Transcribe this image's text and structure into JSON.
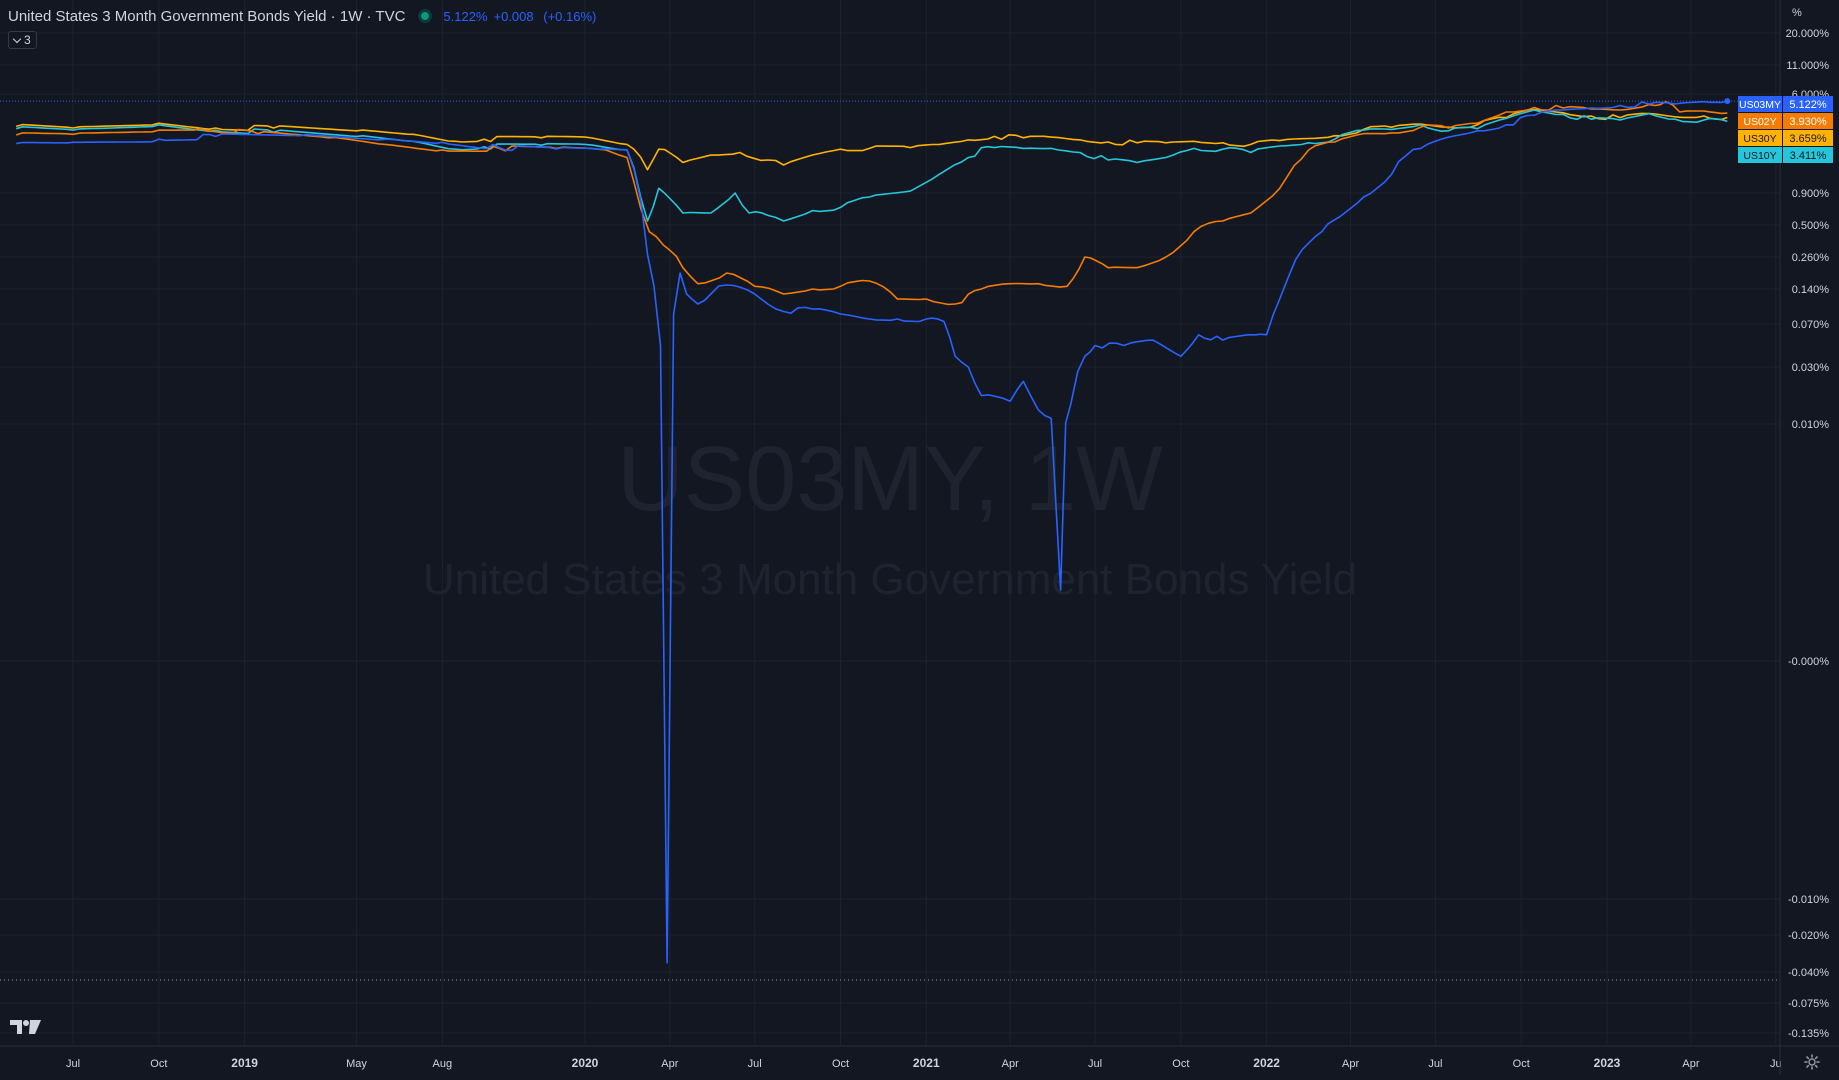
{
  "header": {
    "title": "United States 3 Month Government Bonds Yield · 1W · TVC",
    "last": "5.122%",
    "change": "+0.008",
    "change_pct": "(+0.16%)",
    "status_color": "#089981",
    "legend_toggle": "3"
  },
  "watermark": {
    "symbol": "US03MY, 1W",
    "description": "United States 3 Month Government Bonds Yield"
  },
  "icons": {
    "logo": "tradingview-logo-icon",
    "settings": "gear-icon",
    "toggle": "chevron-down-icon"
  },
  "colors": {
    "background": "#131722",
    "grid": "#1e222d",
    "axis_text": "#d1d4dc",
    "US03MY": "#2962ff",
    "US02Y": "#f57c00",
    "US30Y": "#ffb300",
    "US10Y": "#26c6da"
  },
  "chart_data": {
    "type": "line",
    "scale": "percent (log-like)",
    "axis_unit": "%",
    "y_ticks": [
      "20.000%",
      "11.000%",
      "6.000%",
      "0.900%",
      "0.500%",
      "0.260%",
      "0.140%",
      "0.070%",
      "0.030%",
      "0.010%",
      "-0.000%",
      "-0.010%",
      "-0.020%",
      "-0.040%",
      "-0.075%",
      "-0.135%"
    ],
    "y_tick_values": [
      20,
      11,
      6,
      0.9,
      0.5,
      0.26,
      0.14,
      0.07,
      0.03,
      0.01,
      0,
      -0.01,
      -0.02,
      -0.04,
      -0.075,
      -0.135
    ],
    "x_ticks": [
      "Jul",
      "Oct",
      "2019",
      "May",
      "Aug",
      "2020",
      "Apr",
      "Jul",
      "Oct",
      "2021",
      "Apr",
      "Jul",
      "Oct",
      "2022",
      "Apr",
      "Jul",
      "Oct",
      "2023",
      "Apr",
      "Ju"
    ],
    "x_tick_dates": [
      "2018-07-01",
      "2018-10-01",
      "2019-01-01",
      "2019-05-01",
      "2019-08-01",
      "2020-01-01",
      "2020-04-01",
      "2020-07-01",
      "2020-10-01",
      "2021-01-01",
      "2021-04-01",
      "2021-07-01",
      "2021-10-01",
      "2022-01-01",
      "2022-04-01",
      "2022-07-01",
      "2022-10-01",
      "2023-01-01",
      "2023-04-01",
      "2023-07-01"
    ],
    "x_range": [
      "2018-05-01",
      "2023-08-01"
    ],
    "grid": true,
    "legend": "right-axis labels",
    "series": [
      {
        "name": "US03MY",
        "last_label": "5.122%",
        "points": [
          [
            "2018-05-01",
            1.9
          ],
          [
            "2018-07-01",
            1.98
          ],
          [
            "2018-10-01",
            2.2
          ],
          [
            "2018-12-01",
            2.4
          ],
          [
            "2019-03-01",
            2.45
          ],
          [
            "2019-06-01",
            2.2
          ],
          [
            "2019-08-01",
            1.98
          ],
          [
            "2019-10-01",
            1.65
          ],
          [
            "2019-12-01",
            1.56
          ],
          [
            "2020-01-15",
            1.55
          ],
          [
            "2020-02-15",
            1.52
          ],
          [
            "2020-03-01",
            0.8
          ],
          [
            "2020-03-08",
            0.28
          ],
          [
            "2020-03-15",
            0.15
          ],
          [
            "2020-03-22",
            0.05
          ],
          [
            "2020-03-29",
            -0.035
          ],
          [
            "2020-04-05",
            0.09
          ],
          [
            "2020-04-12",
            0.2
          ],
          [
            "2020-04-19",
            0.13
          ],
          [
            "2020-05-01",
            0.11
          ],
          [
            "2020-05-15",
            0.13
          ],
          [
            "2020-06-01",
            0.155
          ],
          [
            "2020-07-01",
            0.13
          ],
          [
            "2020-07-15",
            0.11
          ],
          [
            "2020-08-01",
            0.095
          ],
          [
            "2020-09-01",
            0.1
          ],
          [
            "2020-10-01",
            0.09
          ],
          [
            "2020-11-01",
            0.08
          ],
          [
            "2020-12-01",
            0.08
          ],
          [
            "2021-01-01",
            0.08
          ],
          [
            "2021-01-20",
            0.075
          ],
          [
            "2021-02-01",
            0.04
          ],
          [
            "2021-02-15",
            0.03
          ],
          [
            "2021-03-01",
            0.02
          ],
          [
            "2021-04-01",
            0.018
          ],
          [
            "2021-04-15",
            0.025
          ],
          [
            "2021-05-01",
            0.015
          ],
          [
            "2021-05-15",
            0.012
          ],
          [
            "2021-05-25",
            0.003
          ],
          [
            "2021-06-05",
            0.017
          ],
          [
            "2021-06-20",
            0.04
          ],
          [
            "2021-07-01",
            0.05
          ],
          [
            "2021-08-01",
            0.05
          ],
          [
            "2021-09-01",
            0.055
          ],
          [
            "2021-10-01",
            0.04
          ],
          [
            "2021-10-20",
            0.06
          ],
          [
            "2021-11-15",
            0.055
          ],
          [
            "2021-12-20",
            0.06
          ],
          [
            "2022-01-01",
            0.06
          ],
          [
            "2022-01-15",
            0.12
          ],
          [
            "2022-02-01",
            0.25
          ],
          [
            "2022-03-01",
            0.45
          ],
          [
            "2022-03-20",
            0.6
          ],
          [
            "2022-04-15",
            0.85
          ],
          [
            "2022-05-15",
            1.1
          ],
          [
            "2022-06-15",
            1.6
          ],
          [
            "2022-07-15",
            2.35
          ],
          [
            "2022-08-15",
            2.8
          ],
          [
            "2022-09-15",
            3.2
          ],
          [
            "2022-10-15",
            3.8
          ],
          [
            "2022-11-15",
            4.2
          ],
          [
            "2022-12-15",
            4.4
          ],
          [
            "2023-01-15",
            4.65
          ],
          [
            "2023-02-15",
            4.8
          ],
          [
            "2023-03-15",
            4.8
          ],
          [
            "2023-04-15",
            5.05
          ],
          [
            "2023-05-10",
            5.122
          ]
        ]
      },
      {
        "name": "US02Y",
        "last_label": "3.930%",
        "points": [
          [
            "2018-05-01",
            2.5
          ],
          [
            "2018-07-01",
            2.55
          ],
          [
            "2018-10-01",
            2.85
          ],
          [
            "2018-11-15",
            2.95
          ],
          [
            "2019-01-15",
            2.6
          ],
          [
            "2019-04-01",
            2.3
          ],
          [
            "2019-06-01",
            1.85
          ],
          [
            "2019-08-01",
            1.5
          ],
          [
            "2019-10-01",
            1.6
          ],
          [
            "2019-12-01",
            1.6
          ],
          [
            "2020-01-15",
            1.55
          ],
          [
            "2020-02-15",
            1.35
          ],
          [
            "2020-03-01",
            0.7
          ],
          [
            "2020-03-10",
            0.45
          ],
          [
            "2020-03-25",
            0.35
          ],
          [
            "2020-04-15",
            0.22
          ],
          [
            "2020-05-01",
            0.16
          ],
          [
            "2020-06-01",
            0.2
          ],
          [
            "2020-07-01",
            0.15
          ],
          [
            "2020-08-01",
            0.13
          ],
          [
            "2020-09-01",
            0.14
          ],
          [
            "2020-10-01",
            0.15
          ],
          [
            "2020-11-01",
            0.17
          ],
          [
            "2020-12-01",
            0.12
          ],
          [
            "2021-01-01",
            0.12
          ],
          [
            "2021-02-01",
            0.11
          ],
          [
            "2021-03-01",
            0.14
          ],
          [
            "2021-04-01",
            0.16
          ],
          [
            "2021-05-01",
            0.16
          ],
          [
            "2021-06-01",
            0.15
          ],
          [
            "2021-06-20",
            0.26
          ],
          [
            "2021-07-15",
            0.22
          ],
          [
            "2021-08-15",
            0.22
          ],
          [
            "2021-09-15",
            0.26
          ],
          [
            "2021-10-15",
            0.45
          ],
          [
            "2021-11-15",
            0.55
          ],
          [
            "2021-12-15",
            0.65
          ],
          [
            "2022-01-15",
            0.95
          ],
          [
            "2022-02-15",
            1.5
          ],
          [
            "2022-03-15",
            2.0
          ],
          [
            "2022-04-15",
            2.6
          ],
          [
            "2022-05-15",
            2.65
          ],
          [
            "2022-06-15",
            3.05
          ],
          [
            "2022-07-15",
            3.0
          ],
          [
            "2022-08-15",
            3.3
          ],
          [
            "2022-09-15",
            4.0
          ],
          [
            "2022-10-15",
            4.45
          ],
          [
            "2022-11-15",
            4.4
          ],
          [
            "2022-12-15",
            4.3
          ],
          [
            "2023-01-15",
            4.2
          ],
          [
            "2023-02-15",
            4.75
          ],
          [
            "2023-03-05",
            5.05
          ],
          [
            "2023-03-20",
            4.0
          ],
          [
            "2023-04-15",
            4.1
          ],
          [
            "2023-05-10",
            3.93
          ]
        ]
      },
      {
        "name": "US30Y",
        "last_label": "3.659%",
        "points": [
          [
            "2018-05-01",
            3.1
          ],
          [
            "2018-07-01",
            3.0
          ],
          [
            "2018-10-01",
            3.3
          ],
          [
            "2018-12-01",
            3.0
          ],
          [
            "2019-02-01",
            3.0
          ],
          [
            "2019-05-01",
            2.8
          ],
          [
            "2019-07-01",
            2.55
          ],
          [
            "2019-08-15",
            2.05
          ],
          [
            "2019-09-15",
            2.2
          ],
          [
            "2019-11-15",
            2.3
          ],
          [
            "2020-01-01",
            2.35
          ],
          [
            "2020-02-15",
            1.85
          ],
          [
            "2020-03-08",
            1.15
          ],
          [
            "2020-03-20",
            1.55
          ],
          [
            "2020-04-15",
            1.25
          ],
          [
            "2020-05-15",
            1.4
          ],
          [
            "2020-06-15",
            1.45
          ],
          [
            "2020-07-15",
            1.3
          ],
          [
            "2020-08-01",
            1.2
          ],
          [
            "2020-09-01",
            1.4
          ],
          [
            "2020-10-01",
            1.55
          ],
          [
            "2020-11-01",
            1.6
          ],
          [
            "2020-12-15",
            1.65
          ],
          [
            "2021-01-15",
            1.85
          ],
          [
            "2021-02-15",
            2.15
          ],
          [
            "2021-03-15",
            2.4
          ],
          [
            "2021-04-15",
            2.3
          ],
          [
            "2021-05-15",
            2.35
          ],
          [
            "2021-06-15",
            2.15
          ],
          [
            "2021-07-15",
            2.0
          ],
          [
            "2021-08-15",
            1.95
          ],
          [
            "2021-09-15",
            1.95
          ],
          [
            "2021-10-15",
            2.05
          ],
          [
            "2021-11-15",
            1.95
          ],
          [
            "2021-12-15",
            1.85
          ],
          [
            "2022-01-15",
            2.1
          ],
          [
            "2022-02-15",
            2.25
          ],
          [
            "2022-03-15",
            2.45
          ],
          [
            "2022-04-15",
            2.9
          ],
          [
            "2022-05-15",
            3.05
          ],
          [
            "2022-06-15",
            3.25
          ],
          [
            "2022-07-15",
            3.05
          ],
          [
            "2022-08-15",
            3.2
          ],
          [
            "2022-09-15",
            3.65
          ],
          [
            "2022-10-15",
            4.25
          ],
          [
            "2022-11-15",
            3.95
          ],
          [
            "2022-12-15",
            3.75
          ],
          [
            "2023-01-15",
            3.65
          ],
          [
            "2023-02-15",
            3.9
          ],
          [
            "2023-03-15",
            3.7
          ],
          [
            "2023-04-15",
            3.75
          ],
          [
            "2023-05-10",
            3.659
          ]
        ]
      },
      {
        "name": "US10Y",
        "last_label": "3.411%",
        "points": [
          [
            "2018-05-01",
            2.95
          ],
          [
            "2018-07-01",
            2.85
          ],
          [
            "2018-10-01",
            3.2
          ],
          [
            "2018-12-01",
            2.85
          ],
          [
            "2019-02-01",
            2.7
          ],
          [
            "2019-05-01",
            2.4
          ],
          [
            "2019-07-01",
            2.05
          ],
          [
            "2019-08-15",
            1.55
          ],
          [
            "2019-09-15",
            1.7
          ],
          [
            "2019-11-15",
            1.8
          ],
          [
            "2020-01-01",
            1.85
          ],
          [
            "2020-02-15",
            1.5
          ],
          [
            "2020-03-08",
            0.55
          ],
          [
            "2020-03-20",
            0.95
          ],
          [
            "2020-04-15",
            0.65
          ],
          [
            "2020-05-15",
            0.65
          ],
          [
            "2020-06-10",
            0.9
          ],
          [
            "2020-06-25",
            0.65
          ],
          [
            "2020-07-15",
            0.62
          ],
          [
            "2020-08-01",
            0.55
          ],
          [
            "2020-09-01",
            0.68
          ],
          [
            "2020-10-01",
            0.72
          ],
          [
            "2020-11-01",
            0.85
          ],
          [
            "2020-12-15",
            0.92
          ],
          [
            "2021-01-15",
            1.1
          ],
          [
            "2021-02-15",
            1.35
          ],
          [
            "2021-03-15",
            1.65
          ],
          [
            "2021-04-15",
            1.6
          ],
          [
            "2021-05-15",
            1.6
          ],
          [
            "2021-06-15",
            1.45
          ],
          [
            "2021-07-15",
            1.3
          ],
          [
            "2021-08-15",
            1.25
          ],
          [
            "2021-09-15",
            1.35
          ],
          [
            "2021-10-15",
            1.6
          ],
          [
            "2021-11-15",
            1.55
          ],
          [
            "2021-12-15",
            1.45
          ],
          [
            "2022-01-15",
            1.75
          ],
          [
            "2022-02-15",
            1.95
          ],
          [
            "2022-03-15",
            2.2
          ],
          [
            "2022-04-15",
            2.85
          ],
          [
            "2022-05-15",
            2.9
          ],
          [
            "2022-06-15",
            3.2
          ],
          [
            "2022-07-15",
            2.8
          ],
          [
            "2022-08-15",
            2.95
          ],
          [
            "2022-09-15",
            3.6
          ],
          [
            "2022-10-15",
            4.2
          ],
          [
            "2022-11-15",
            3.85
          ],
          [
            "2022-12-15",
            3.55
          ],
          [
            "2023-01-15",
            3.5
          ],
          [
            "2023-02-15",
            3.9
          ],
          [
            "2023-03-15",
            3.55
          ],
          [
            "2023-04-15",
            3.5
          ],
          [
            "2023-05-10",
            3.411
          ]
        ]
      }
    ]
  }
}
